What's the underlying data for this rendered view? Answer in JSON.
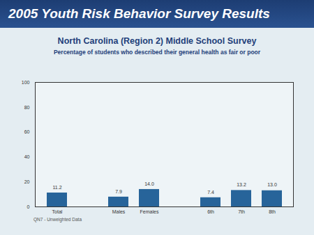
{
  "header": "2005 Youth Risk Behavior Survey Results",
  "chart_data": {
    "type": "bar",
    "title": "North Carolina (Region 2) Middle School Survey",
    "subtitle": "Percentage of students who described their general health as fair or poor",
    "categories": [
      "Total",
      null,
      "Males",
      "Females",
      null,
      "6th",
      "7th",
      "8th"
    ],
    "values": [
      11.2,
      null,
      7.9,
      14.0,
      null,
      7.4,
      13.2,
      13.0
    ],
    "value_labels": [
      "11.2",
      null,
      "7.9",
      "14.0",
      null,
      "7.4",
      "13.2",
      "13.0"
    ],
    "color": "#27649a",
    "ylim": [
      0,
      100
    ],
    "yticks": [
      0,
      20,
      40,
      60,
      80,
      100
    ],
    "grid": false,
    "data_labels": true,
    "annotations": [
      "QN7 - Unweighted Data"
    ]
  }
}
